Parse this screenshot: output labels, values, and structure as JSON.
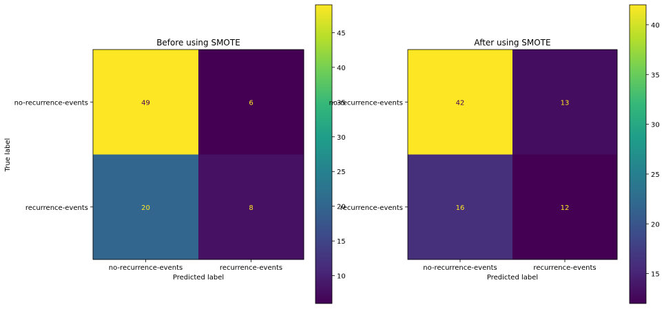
{
  "chart_data": [
    {
      "type": "heatmap",
      "title": "Before using SMOTE",
      "xlabel": "Predicted label",
      "ylabel": "True label",
      "x_categories": [
        "no-recurrence-events",
        "recurrence-events"
      ],
      "y_categories": [
        "no-recurrence-events",
        "recurrence-events"
      ],
      "values": [
        [
          49,
          6
        ],
        [
          20,
          8
        ]
      ],
      "colormap": "viridis",
      "colorbar": {
        "vmin": 6,
        "vmax": 49,
        "ticks": [
          10,
          15,
          20,
          25,
          30,
          35,
          40,
          45
        ]
      }
    },
    {
      "type": "heatmap",
      "title": "After using SMOTE",
      "xlabel": "Predicted label",
      "ylabel": "",
      "x_categories": [
        "no-recurrence-events",
        "recurrence-events"
      ],
      "y_categories": [
        "no-recurrence-events",
        "recurrence-events"
      ],
      "values": [
        [
          42,
          13
        ],
        [
          16,
          12
        ]
      ],
      "colormap": "viridis",
      "colorbar": {
        "vmin": 12,
        "vmax": 42,
        "ticks": [
          15,
          20,
          25,
          30,
          35,
          40
        ]
      }
    }
  ],
  "colors": {
    "viridis_stops": [
      "#440154",
      "#482878",
      "#3e4989",
      "#31688e",
      "#26828e",
      "#1f9e89",
      "#35b779",
      "#6ece58",
      "#b5de2b",
      "#fde725"
    ],
    "text_on_dark": "#fde725",
    "text_on_light": "#440154"
  }
}
